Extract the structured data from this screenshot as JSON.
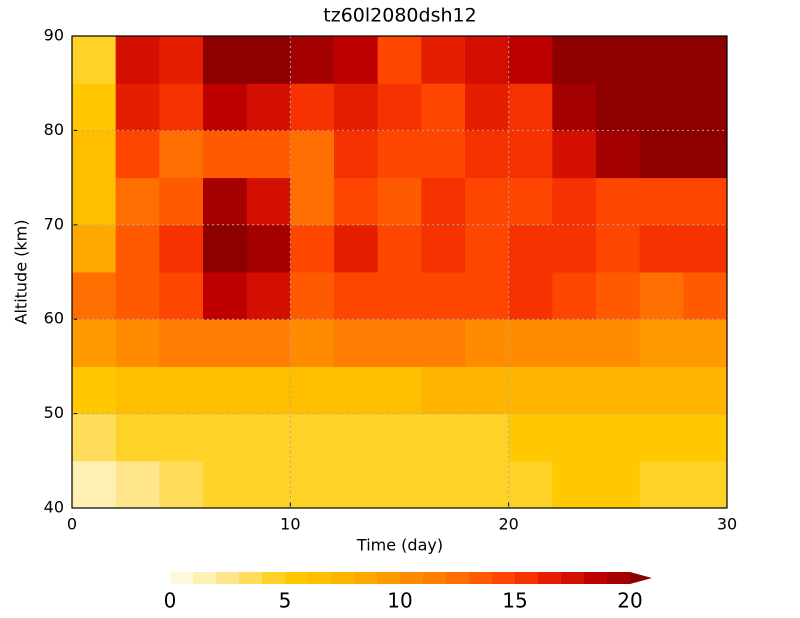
{
  "chart_data": {
    "type": "heatmap",
    "title": "tz60l2080dsh12",
    "xlabel": "Time (day)",
    "ylabel": "Altitude (km)",
    "x": [
      1,
      3,
      5,
      7,
      9,
      11,
      13,
      15,
      17,
      19,
      21,
      23,
      25,
      27,
      29
    ],
    "y": [
      42.5,
      47.5,
      52.5,
      57.5,
      62.5,
      67.5,
      72.5,
      77.5,
      82.5,
      87.5
    ],
    "z": [
      [
        1,
        2,
        3,
        4,
        4,
        4,
        4,
        4,
        4,
        4,
        4,
        5,
        5,
        4,
        4
      ],
      [
        3,
        4,
        4,
        4,
        4,
        4,
        4,
        4,
        4,
        4,
        5,
        5,
        5,
        5,
        5
      ],
      [
        5,
        6,
        6,
        6,
        6,
        6,
        6,
        6,
        7,
        7,
        7,
        7,
        7,
        7,
        7
      ],
      [
        9,
        10,
        11,
        11,
        11,
        10,
        11,
        11,
        11,
        10,
        10,
        10,
        10,
        9,
        9
      ],
      [
        12,
        13,
        14,
        18,
        17,
        13,
        14,
        14,
        14,
        14,
        15,
        14,
        13,
        12,
        13
      ],
      [
        8,
        13,
        15,
        20,
        19,
        14,
        16,
        14,
        15,
        14,
        15,
        15,
        14,
        15,
        15
      ],
      [
        6,
        12,
        13,
        19,
        17,
        12,
        14,
        13,
        15,
        14,
        14,
        15,
        14,
        14,
        14
      ],
      [
        6,
        14,
        12,
        13,
        13,
        12,
        15,
        14,
        14,
        15,
        15,
        17,
        19,
        20,
        20
      ],
      [
        5,
        16,
        15,
        18,
        17,
        15,
        16,
        15,
        14,
        16,
        15,
        19,
        21,
        21,
        21
      ],
      [
        4,
        17,
        16,
        20,
        21,
        19,
        18,
        14,
        16,
        17,
        18,
        20,
        21,
        21,
        21
      ]
    ],
    "xlim": [
      0,
      30
    ],
    "xticks": [
      0,
      10,
      20,
      30
    ],
    "ylim": [
      40,
      90
    ],
    "yticks": [
      40,
      50,
      60,
      70,
      80,
      90
    ],
    "grid": true,
    "colorbar": {
      "levels": [
        0,
        1,
        2,
        3,
        4,
        5,
        6,
        7,
        8,
        9,
        10,
        11,
        12,
        13,
        14,
        15,
        16,
        17,
        18,
        19,
        20
      ],
      "colors": [
        "#fff8dc",
        "#fff0b4",
        "#ffe68c",
        "#ffdc5a",
        "#ffd228",
        "#ffc800",
        "#ffbe00",
        "#ffb400",
        "#ffa800",
        "#ff9a00",
        "#ff8c00",
        "#ff7d00",
        "#ff6e00",
        "#ff5a00",
        "#ff4600",
        "#f53200",
        "#e61e00",
        "#d20f00",
        "#be0000",
        "#a50000",
        "#8c0000"
      ],
      "ticks": [
        0,
        5,
        10,
        15,
        20
      ]
    }
  }
}
